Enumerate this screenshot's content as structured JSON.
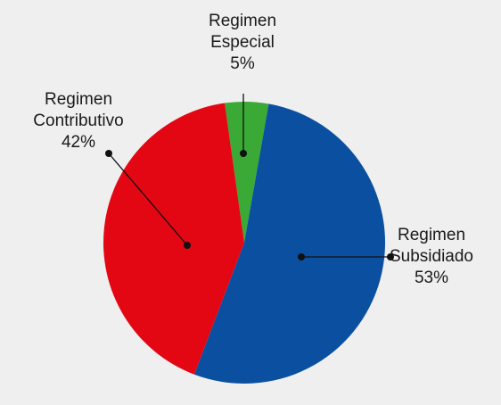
{
  "chart_data": {
    "type": "pie",
    "categories": [
      "Regimen Especial",
      "Regimen Subsidiado",
      "Regimen Contributivo"
    ],
    "values": [
      5,
      53,
      42
    ],
    "value_labels": [
      "5%",
      "53%",
      "42%"
    ],
    "colors": [
      "#3aa935",
      "#0b4fa0",
      "#e30613"
    ]
  }
}
